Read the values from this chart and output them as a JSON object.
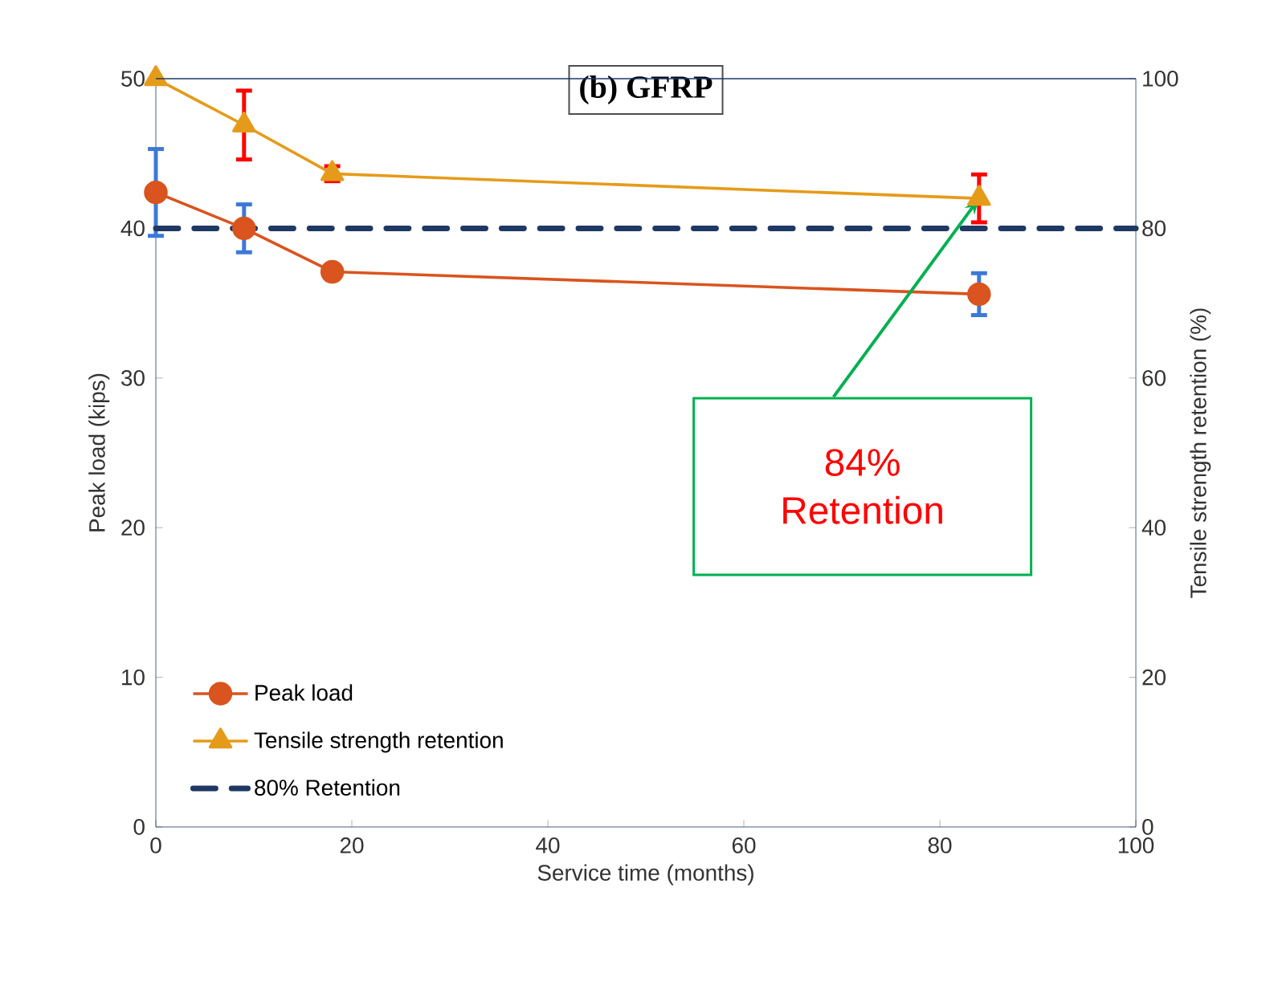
{
  "chart_data": {
    "type": "line",
    "title": "(b) GFRP",
    "xlabel": "Service time (months)",
    "ylabel": "Peak load (kips)",
    "y2label": "Tensile strength retention (%)",
    "x": [
      0,
      9,
      18,
      84
    ],
    "series": [
      {
        "name": "Peak load",
        "color": "#d9541e",
        "marker": "circle",
        "values": [
          42.4,
          40.0,
          37.1,
          35.6
        ],
        "errors": [
          2.9,
          1.6,
          null,
          1.4
        ]
      },
      {
        "name": "Tensile strength retention",
        "color": "#e59b1a",
        "marker": "triangle",
        "axis": "y2",
        "values": [
          100,
          93.8,
          87.3,
          84
        ],
        "errors": [
          null,
          4.6,
          1,
          3.2
        ]
      }
    ],
    "ref_lines": [
      {
        "axis": "y",
        "value": 40,
        "label": "80% Retention",
        "color": "#1f3864",
        "line_style": "dashed"
      }
    ],
    "annotations": [
      "84% Retention"
    ],
    "xlim": [
      0,
      100
    ],
    "xticks": [
      0,
      20,
      40,
      60,
      80,
      100
    ],
    "ylim": [
      0,
      50
    ],
    "yticks": [
      0,
      10,
      20,
      30,
      40,
      50
    ],
    "y2lim": [
      0,
      100
    ],
    "y2ticks": [
      0,
      20,
      40,
      60,
      80,
      100
    ],
    "grid": false,
    "legend": "bottom left"
  }
}
